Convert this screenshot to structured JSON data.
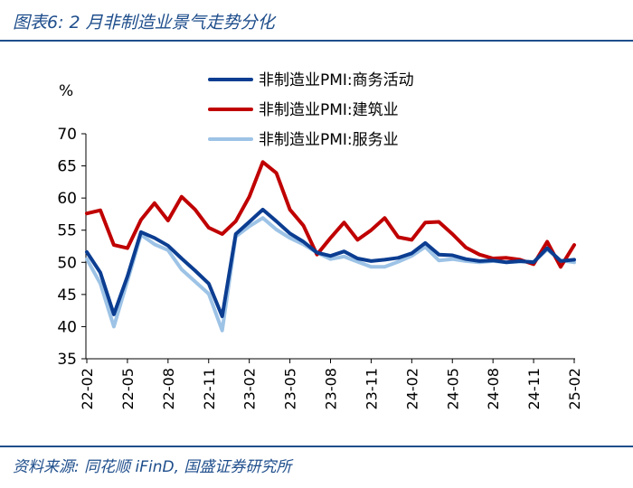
{
  "title": "图表6:  2 月非制造业景气走势分化",
  "source": "资料来源: 同花顺 iFinD, 国盛证券研究所",
  "chart_data": {
    "type": "line",
    "ylabel": "%",
    "ylim": [
      35,
      70
    ],
    "yticks": [
      35,
      40,
      45,
      50,
      55,
      60,
      65,
      70
    ],
    "x_tick_labels": [
      "22-02",
      "22-05",
      "22-08",
      "22-11",
      "23-02",
      "23-05",
      "23-08",
      "23-11",
      "24-02",
      "24-05",
      "24-08",
      "24-11",
      "25-02"
    ],
    "x": [
      "22-02",
      "22-03",
      "22-04",
      "22-05",
      "22-06",
      "22-07",
      "22-08",
      "22-09",
      "22-10",
      "22-11",
      "22-12",
      "23-01",
      "23-02",
      "23-03",
      "23-04",
      "23-05",
      "23-06",
      "23-07",
      "23-08",
      "23-09",
      "23-10",
      "23-11",
      "23-12",
      "24-01",
      "24-02",
      "24-03",
      "24-04",
      "24-05",
      "24-06",
      "24-07",
      "24-08",
      "24-09",
      "24-10",
      "24-11",
      "24-12",
      "25-01",
      "25-02"
    ],
    "series": [
      {
        "name": "非制造业PMI:商务活动",
        "color": "#0b3d91",
        "values": [
          51.6,
          48.4,
          41.9,
          47.8,
          54.7,
          53.8,
          52.6,
          50.6,
          48.7,
          46.7,
          41.6,
          54.4,
          56.3,
          58.2,
          56.4,
          54.5,
          53.2,
          51.5,
          51.0,
          51.7,
          50.6,
          50.2,
          50.4,
          50.7,
          51.4,
          53.0,
          51.2,
          51.1,
          50.5,
          50.2,
          50.3,
          50.0,
          50.2,
          50.0,
          52.2,
          50.2,
          50.4
        ]
      },
      {
        "name": "非制造业PMI:建筑业",
        "color": "#c00000",
        "values": [
          57.6,
          58.1,
          52.7,
          52.2,
          56.6,
          59.2,
          56.5,
          60.2,
          58.2,
          55.4,
          54.4,
          56.4,
          60.2,
          65.6,
          63.9,
          58.2,
          55.7,
          51.2,
          53.8,
          56.2,
          53.5,
          55.0,
          56.9,
          53.9,
          53.5,
          56.2,
          56.3,
          54.4,
          52.3,
          51.2,
          50.6,
          50.7,
          50.4,
          49.7,
          53.2,
          49.3,
          52.7
        ]
      },
      {
        "name": "非制造业PMI:服务业",
        "color": "#9dc3e6",
        "values": [
          50.5,
          46.7,
          40.0,
          47.1,
          54.3,
          52.8,
          51.9,
          48.9,
          47.0,
          45.1,
          39.4,
          54.0,
          55.6,
          56.9,
          55.1,
          53.8,
          52.8,
          51.5,
          50.5,
          50.9,
          50.1,
          49.3,
          49.3,
          50.1,
          51.0,
          52.4,
          50.3,
          50.5,
          50.2,
          50.0,
          50.2,
          50.0,
          50.1,
          50.1,
          52.0,
          50.3,
          50.0
        ]
      }
    ],
    "legend_position": "top-right",
    "grid": false
  }
}
